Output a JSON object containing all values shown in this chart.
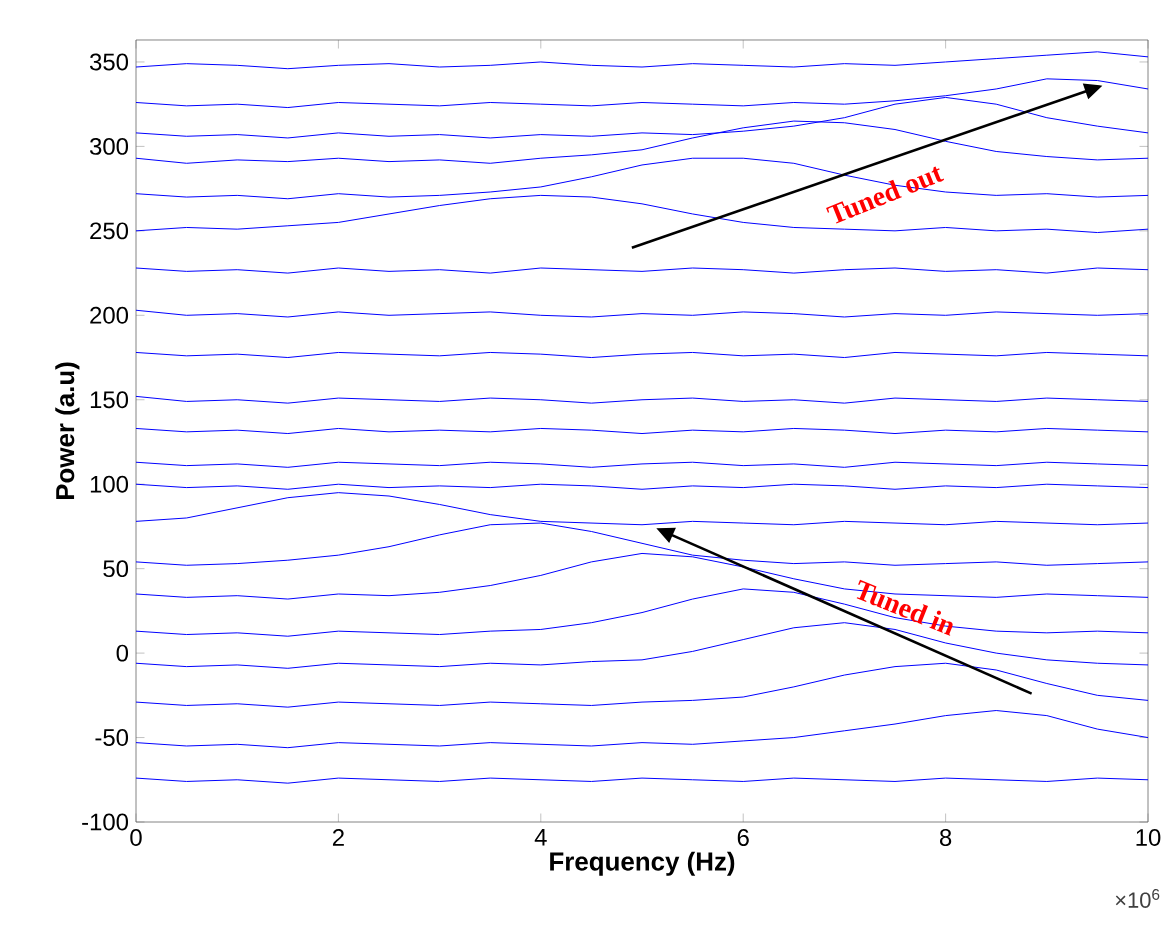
{
  "chart_data": {
    "type": "line",
    "xlabel": "Frequency (Hz)",
    "ylabel": "Power (a.u)",
    "x": [
      0,
      0.5,
      1,
      1.5,
      2,
      2.5,
      3,
      3.5,
      4,
      4.5,
      5,
      5.5,
      6,
      6.5,
      7,
      7.5,
      8,
      8.5,
      9,
      9.5,
      10
    ],
    "xlim": [
      0,
      10
    ],
    "ylim": [
      -100,
      363
    ],
    "xticks": [
      0,
      2,
      4,
      6,
      8,
      10
    ],
    "yticks": [
      -100,
      -50,
      0,
      50,
      100,
      150,
      200,
      250,
      300,
      350
    ],
    "grid": false,
    "marker": "none",
    "line_style": "solid",
    "annotations": [
      "Tuned out",
      "Tuned in",
      "×10$^{6}$"
    ],
    "series": [
      {
        "color": "#0000ff",
        "values": [
          347,
          349,
          348,
          346,
          348,
          349,
          347,
          348,
          350,
          348,
          347,
          349,
          348,
          347,
          349,
          348,
          350,
          352,
          354,
          356,
          353
        ]
      },
      {
        "color": "#0000ff",
        "values": [
          326,
          324,
          325,
          323,
          326,
          325,
          324,
          326,
          325,
          324,
          326,
          325,
          324,
          326,
          325,
          327,
          330,
          334,
          340,
          339,
          334
        ]
      },
      {
        "color": "#0000ff",
        "values": [
          308,
          306,
          307,
          305,
          308,
          306,
          307,
          305,
          307,
          306,
          308,
          307,
          309,
          312,
          317,
          325,
          329,
          325,
          317,
          312,
          308
        ]
      },
      {
        "color": "#0000ff",
        "values": [
          293,
          290,
          292,
          291,
          293,
          291,
          292,
          290,
          293,
          295,
          298,
          305,
          311,
          315,
          314,
          310,
          303,
          297,
          294,
          292,
          293
        ]
      },
      {
        "color": "#0000ff",
        "values": [
          272,
          270,
          271,
          269,
          272,
          270,
          271,
          273,
          276,
          282,
          289,
          293,
          293,
          290,
          283,
          277,
          273,
          271,
          272,
          270,
          271
        ]
      },
      {
        "color": "#0000ff",
        "values": [
          250,
          252,
          251,
          253,
          255,
          260,
          265,
          269,
          271,
          270,
          266,
          260,
          255,
          252,
          251,
          250,
          252,
          250,
          251,
          249,
          251
        ]
      },
      {
        "color": "#0000ff",
        "values": [
          228,
          226,
          227,
          225,
          228,
          226,
          227,
          225,
          228,
          227,
          226,
          228,
          227,
          225,
          227,
          228,
          226,
          227,
          225,
          228,
          227
        ]
      },
      {
        "color": "#0000ff",
        "values": [
          203,
          200,
          201,
          199,
          202,
          200,
          201,
          202,
          200,
          199,
          201,
          200,
          202,
          201,
          199,
          201,
          200,
          202,
          201,
          200,
          201
        ]
      },
      {
        "color": "#0000ff",
        "values": [
          178,
          176,
          177,
          175,
          178,
          177,
          176,
          178,
          177,
          175,
          177,
          178,
          176,
          177,
          175,
          178,
          177,
          176,
          178,
          177,
          176
        ]
      },
      {
        "color": "#0000ff",
        "values": [
          152,
          149,
          150,
          148,
          151,
          150,
          149,
          151,
          150,
          148,
          150,
          151,
          149,
          150,
          148,
          151,
          150,
          149,
          151,
          150,
          149
        ]
      },
      {
        "color": "#0000ff",
        "values": [
          133,
          131,
          132,
          130,
          133,
          131,
          132,
          131,
          133,
          132,
          130,
          132,
          131,
          133,
          132,
          130,
          132,
          131,
          133,
          132,
          131
        ]
      },
      {
        "color": "#0000ff",
        "values": [
          113,
          111,
          112,
          110,
          113,
          112,
          111,
          113,
          112,
          110,
          112,
          113,
          111,
          112,
          110,
          113,
          112,
          111,
          113,
          112,
          111
        ]
      },
      {
        "color": "#0000ff",
        "values": [
          100,
          98,
          99,
          97,
          100,
          98,
          99,
          98,
          100,
          99,
          97,
          99,
          98,
          100,
          99,
          97,
          99,
          98,
          100,
          99,
          98
        ]
      },
      {
        "color": "#0000ff",
        "values": [
          78,
          80,
          86,
          92,
          95,
          93,
          88,
          82,
          78,
          77,
          76,
          78,
          77,
          76,
          78,
          77,
          76,
          78,
          77,
          76,
          77
        ]
      },
      {
        "color": "#0000ff",
        "values": [
          54,
          52,
          53,
          55,
          58,
          63,
          70,
          76,
          77,
          72,
          65,
          58,
          55,
          53,
          54,
          52,
          53,
          54,
          52,
          53,
          54
        ]
      },
      {
        "color": "#0000ff",
        "values": [
          35,
          33,
          34,
          32,
          35,
          34,
          36,
          40,
          46,
          54,
          59,
          57,
          51,
          44,
          38,
          35,
          34,
          33,
          35,
          34,
          33
        ]
      },
      {
        "color": "#0000ff",
        "values": [
          13,
          11,
          12,
          10,
          13,
          12,
          11,
          13,
          14,
          18,
          24,
          32,
          38,
          36,
          29,
          21,
          16,
          13,
          12,
          13,
          12
        ]
      },
      {
        "color": "#0000ff",
        "values": [
          -6,
          -8,
          -7,
          -9,
          -6,
          -7,
          -8,
          -6,
          -7,
          -5,
          -4,
          1,
          8,
          15,
          18,
          14,
          6,
          0,
          -4,
          -6,
          -7
        ]
      },
      {
        "color": "#0000ff",
        "values": [
          -29,
          -31,
          -30,
          -32,
          -29,
          -30,
          -31,
          -29,
          -30,
          -31,
          -29,
          -28,
          -26,
          -20,
          -13,
          -8,
          -6,
          -10,
          -18,
          -25,
          -28
        ]
      },
      {
        "color": "#0000ff",
        "values": [
          -53,
          -55,
          -54,
          -56,
          -53,
          -54,
          -55,
          -53,
          -54,
          -55,
          -53,
          -54,
          -52,
          -50,
          -46,
          -42,
          -37,
          -34,
          -37,
          -45,
          -50
        ]
      },
      {
        "color": "#0000ff",
        "values": [
          -74,
          -76,
          -75,
          -77,
          -74,
          -75,
          -76,
          -74,
          -75,
          -76,
          -74,
          -75,
          -76,
          -74,
          -75,
          -76,
          -74,
          -75,
          -76,
          -74,
          -75
        ]
      }
    ]
  }
}
